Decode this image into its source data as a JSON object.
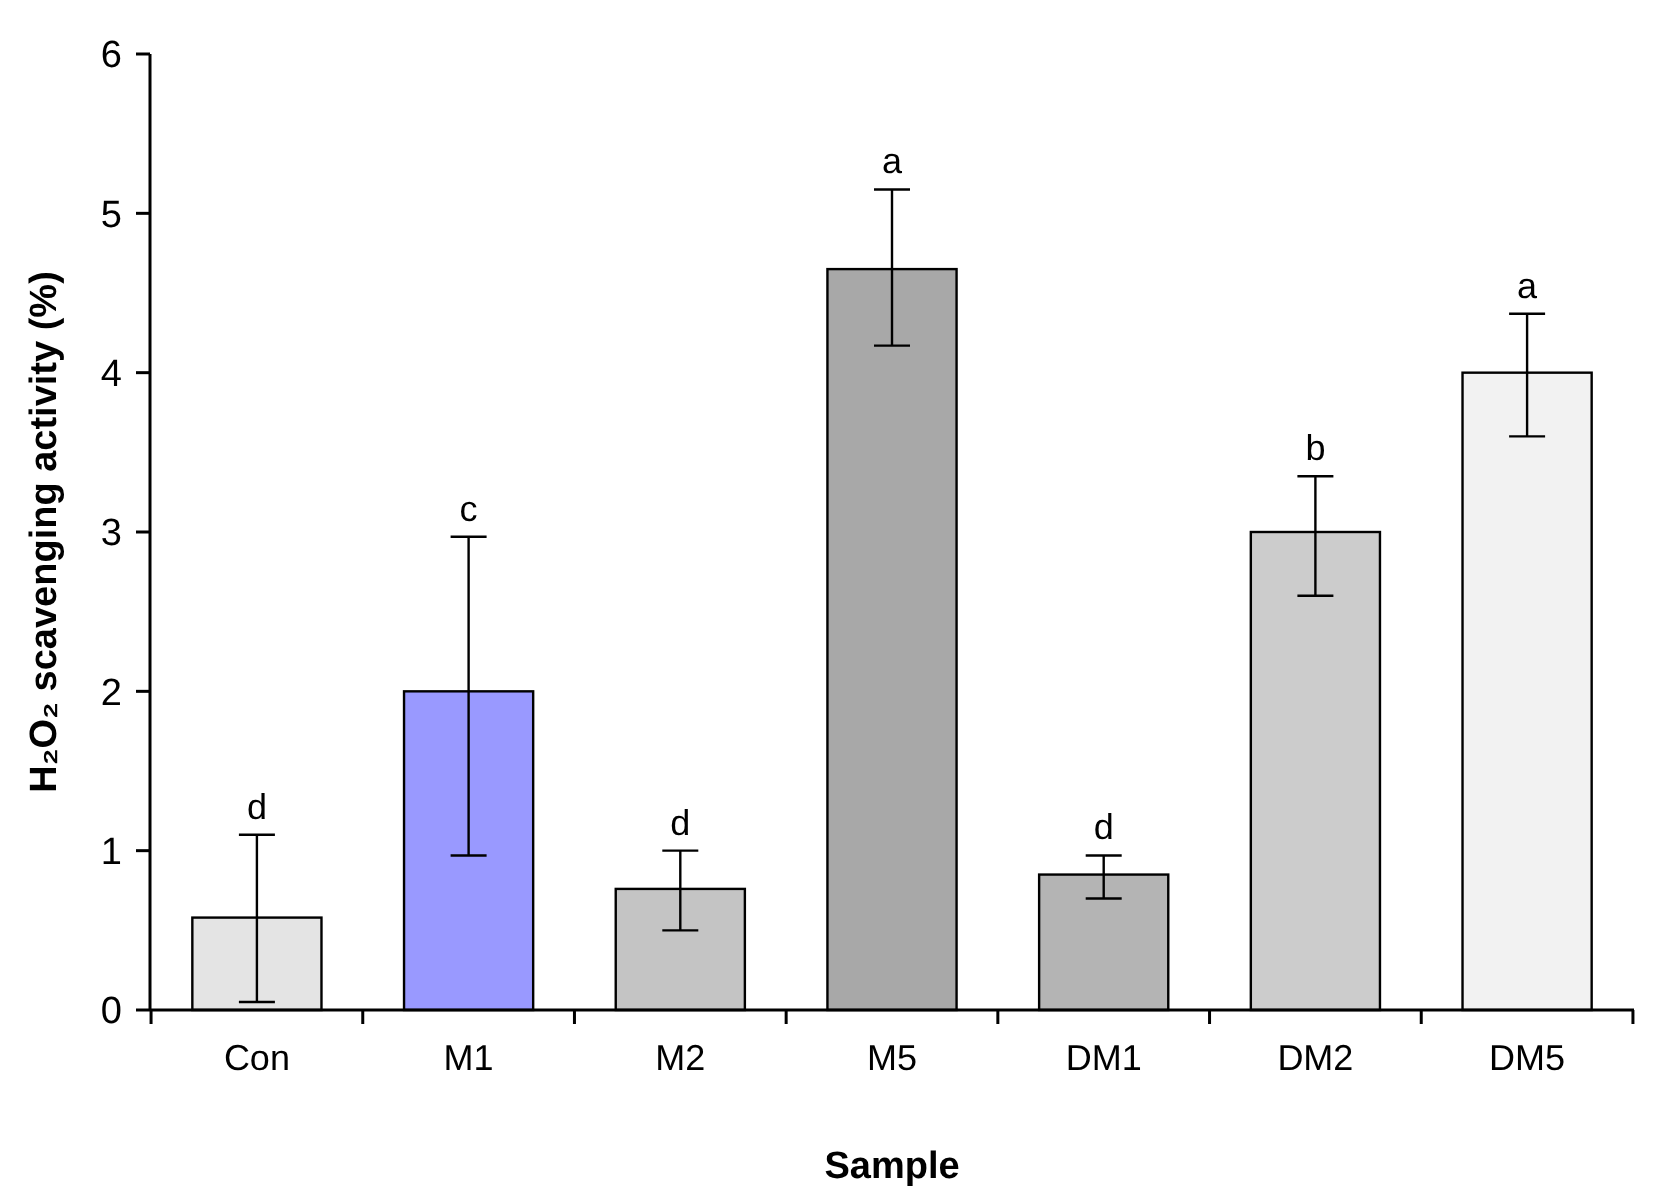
{
  "chart_data": {
    "type": "bar",
    "xlabel": "Sample",
    "ylabel": "H₂O₂ scavenging activity  (%)",
    "categories": [
      "Con",
      "M1",
      "M2",
      "M5",
      "DM1",
      "DM2",
      "DM5"
    ],
    "values": [
      0.58,
      2.0,
      0.76,
      4.65,
      0.85,
      3.0,
      4.0
    ],
    "colors": [
      "#e4e4e4",
      "#9999ff",
      "#c4c4c4",
      "#a8a8a8",
      "#b4b4b4",
      "#cccccc",
      "#f2f2f2"
    ],
    "errors": [
      [
        0.05,
        1.1
      ],
      [
        0.97,
        2.97
      ],
      [
        0.5,
        1.0
      ],
      [
        4.17,
        5.15
      ],
      [
        0.7,
        0.97
      ],
      [
        2.6,
        3.35
      ],
      [
        3.6,
        4.37
      ]
    ],
    "annotations": [
      {
        "text": "d",
        "x": "Con",
        "y": 1.1
      },
      {
        "text": "c",
        "x": "M1",
        "y": 2.97
      },
      {
        "text": "d",
        "x": "M2",
        "y": 1.0
      },
      {
        "text": "a",
        "x": "M5",
        "y": 5.15
      },
      {
        "text": "d",
        "x": "DM1",
        "y": 0.97
      },
      {
        "text": "b",
        "x": "DM2",
        "y": 3.35
      },
      {
        "text": "a",
        "x": "DM5",
        "y": 4.37
      }
    ],
    "ylim": [
      0,
      6
    ],
    "yticks": [
      0,
      1,
      2,
      3,
      4,
      5,
      6
    ],
    "grid": false
  }
}
